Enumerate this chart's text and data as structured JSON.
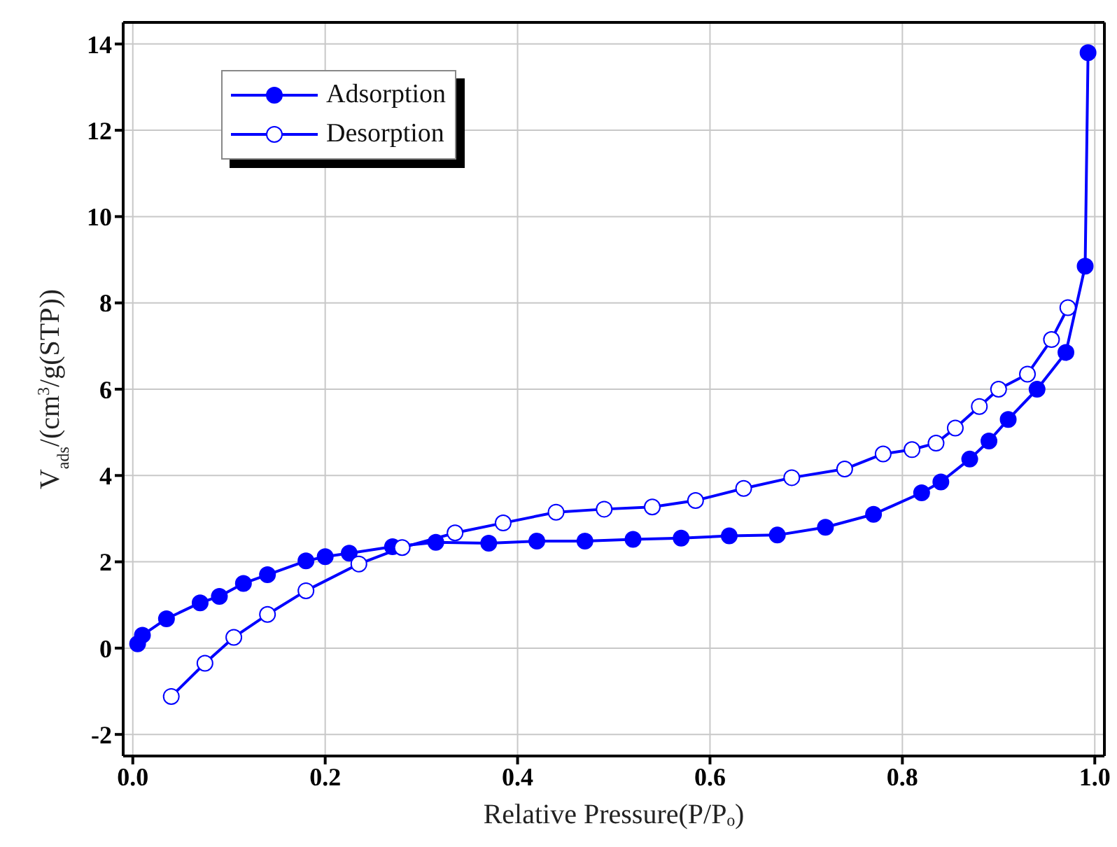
{
  "chart_data": {
    "type": "line",
    "xlabel": "Relative Pressure(P/Pₒ)",
    "ylabel": "V$_{ads}$/(cm$^{3}$/g(STP))",
    "xlim": [
      -0.01,
      1.01
    ],
    "ylim": [
      -2.5,
      14.5
    ],
    "xticks": [
      {
        "value": 0,
        "label": "0.0"
      },
      0.2,
      0.4,
      0.6,
      0.8,
      {
        "value": 1,
        "label": "1.0"
      }
    ],
    "yticks": [
      -2,
      0,
      2,
      4,
      6,
      8,
      10,
      12,
      14
    ],
    "grid": true,
    "legend": "top left",
    "marker": "circle",
    "line_style": "solid",
    "series": [
      {
        "name": "Adsorption",
        "color": "#0000ff",
        "x": [
          0.005,
          0.01,
          0.035,
          0.07,
          0.09,
          0.115,
          0.14,
          0.18,
          0.2,
          0.225,
          0.27,
          0.315,
          0.37,
          0.42,
          0.47,
          0.52,
          0.57,
          0.62,
          0.67,
          0.72,
          0.77,
          0.82,
          0.84,
          0.87,
          0.89,
          0.91,
          0.94,
          0.97,
          0.99,
          0.993
        ],
        "values": [
          0.1,
          0.3,
          0.68,
          1.05,
          1.2,
          1.5,
          1.7,
          2.02,
          2.12,
          2.2,
          2.35,
          2.45,
          2.43,
          2.48,
          2.48,
          2.52,
          2.55,
          2.6,
          2.62,
          2.8,
          3.1,
          3.6,
          3.85,
          4.38,
          4.8,
          5.3,
          6.0,
          6.85,
          8.85,
          13.8
        ]
      },
      {
        "name": "Desorption",
        "color": "#0000ff",
        "x": [
          0.04,
          0.075,
          0.105,
          0.14,
          0.18,
          0.235,
          0.28,
          0.335,
          0.385,
          0.44,
          0.49,
          0.54,
          0.585,
          0.635,
          0.685,
          0.74,
          0.78,
          0.81,
          0.835,
          0.855,
          0.88,
          0.9,
          0.93,
          0.955,
          0.972
        ],
        "values": [
          -1.12,
          -0.35,
          0.25,
          0.78,
          1.33,
          1.95,
          2.33,
          2.67,
          2.9,
          3.15,
          3.22,
          3.27,
          3.42,
          3.7,
          3.95,
          4.15,
          4.5,
          4.6,
          4.75,
          5.1,
          5.6,
          6.0,
          6.35,
          7.15,
          7.89
        ]
      }
    ]
  }
}
